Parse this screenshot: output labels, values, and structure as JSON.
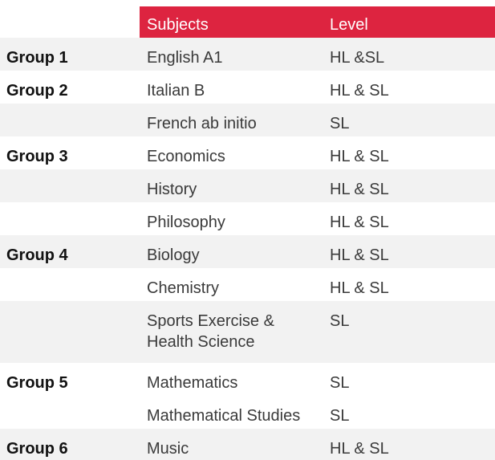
{
  "header": {
    "subjects_label": "Subjects",
    "level_label": "Level"
  },
  "colors": {
    "header_red": "#dd2440",
    "stripe_gray": "#f2f2f2",
    "text": "#3a3a3a"
  },
  "rows": [
    {
      "group": "Group 1",
      "subject": "English A1",
      "level": "HL &SL"
    },
    {
      "group": "Group 2",
      "subject": "Italian B",
      "level": "HL & SL"
    },
    {
      "group": "",
      "subject": "French ab initio",
      "level": "SL"
    },
    {
      "group": "Group 3",
      "subject": "Economics",
      "level": "HL & SL"
    },
    {
      "group": "",
      "subject": "History",
      "level": "HL & SL"
    },
    {
      "group": "",
      "subject": "Philosophy",
      "level": "HL & SL"
    },
    {
      "group": "Group 4",
      "subject": "Biology",
      "level": "HL & SL"
    },
    {
      "group": "",
      "subject": "Chemistry",
      "level": "HL & SL"
    },
    {
      "group": "",
      "subject_line1": "Sports Exercise &",
      "subject_line2": "Health Science",
      "level": "SL"
    },
    {
      "group": "Group 5",
      "subject": "Mathematics",
      "level": "SL"
    },
    {
      "group": "",
      "subject": "Mathematical Studies",
      "level": "SL"
    },
    {
      "group": "Group 6",
      "subject": "Music",
      "level": "HL & SL"
    }
  ]
}
